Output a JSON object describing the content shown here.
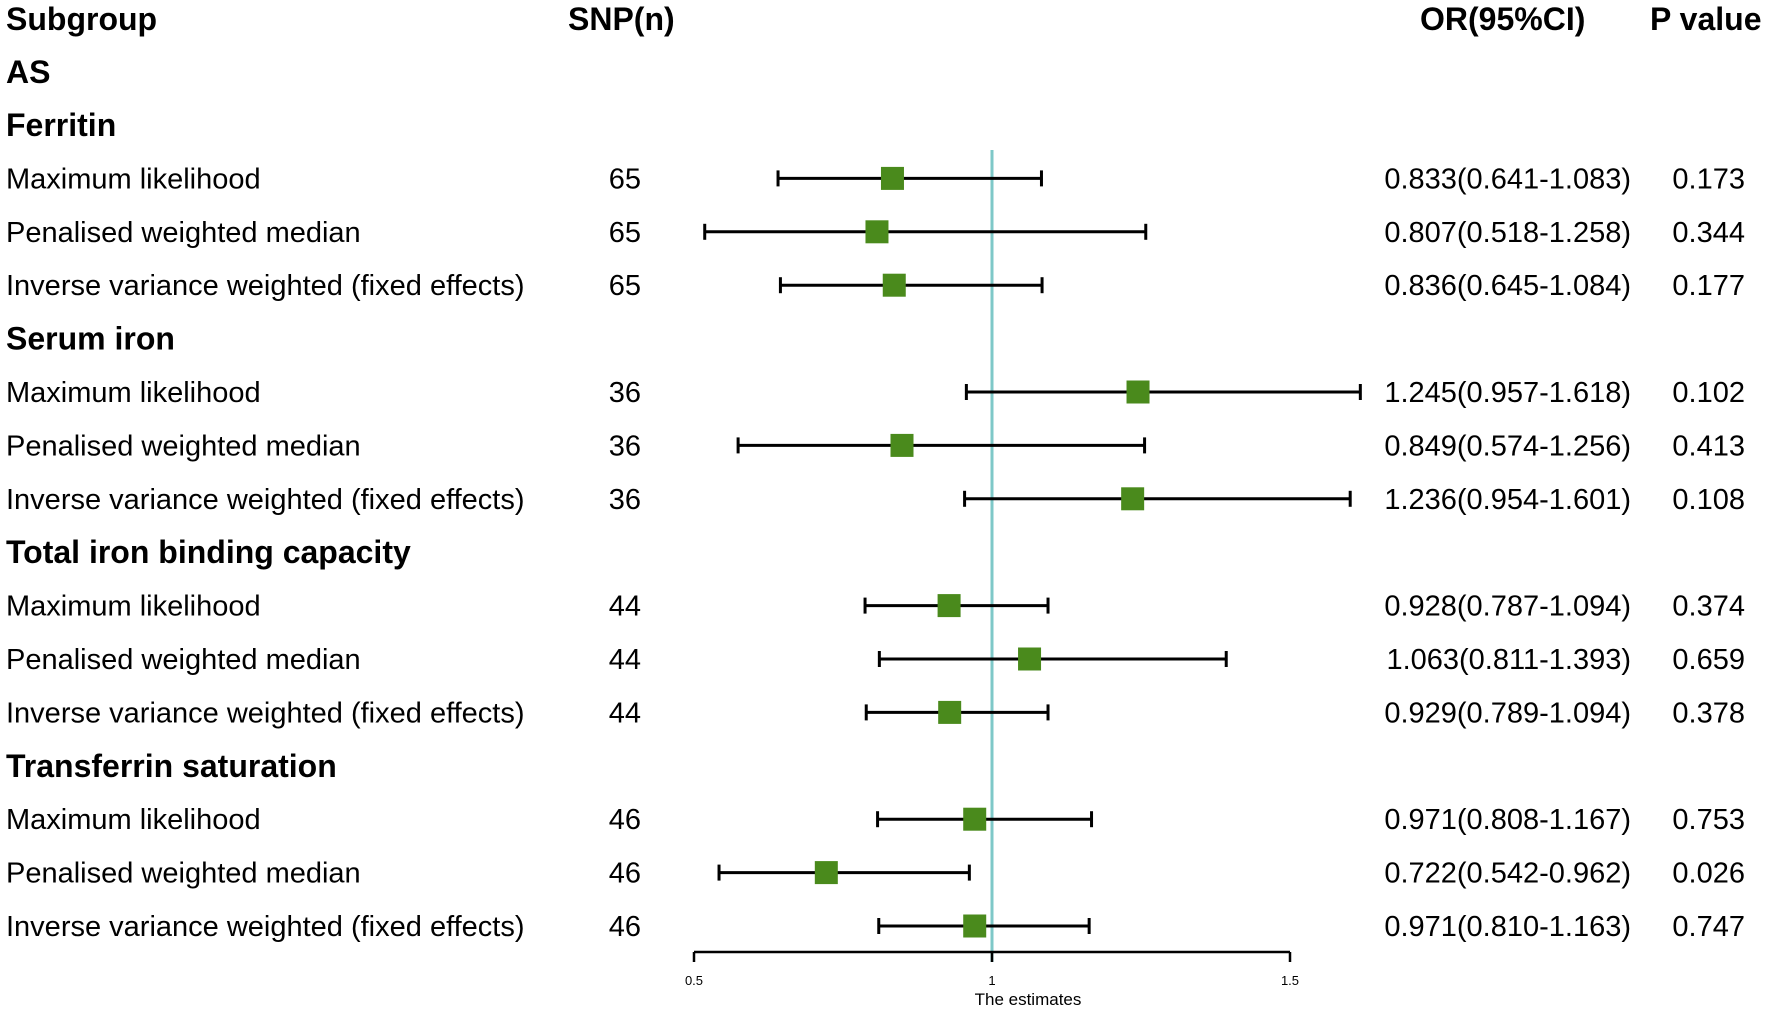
{
  "chart_data": {
    "type": "forest",
    "headers": {
      "subgroup": "Subgroup",
      "snp": "SNP(n)",
      "or": "OR(95%CI)",
      "p": "P value"
    },
    "outcome": "AS",
    "xlabel": "The estimates",
    "xlim": [
      0.5,
      1.5
    ],
    "xticks": [
      0.5,
      1,
      1.5
    ],
    "xtick_labels": [
      "0.5",
      "1",
      "1.5"
    ],
    "reference_line": 1,
    "colors": {
      "marker": "#4a8a1c",
      "reference": "#7ec8c8",
      "ci": "#000000"
    },
    "groups": [
      {
        "name": "Ferritin",
        "rows": [
          {
            "method": "Maximum likelihood",
            "snp": "65",
            "or": 0.833,
            "lo": 0.641,
            "hi": 1.083,
            "or_text": "0.833(0.641-1.083)",
            "p": "0.173"
          },
          {
            "method": "Penalised weighted median",
            "snp": "65",
            "or": 0.807,
            "lo": 0.518,
            "hi": 1.258,
            "or_text": "0.807(0.518-1.258)",
            "p": "0.344"
          },
          {
            "method": "Inverse variance weighted (fixed effects)",
            "snp": "65",
            "or": 0.836,
            "lo": 0.645,
            "hi": 1.084,
            "or_text": "0.836(0.645-1.084)",
            "p": "0.177"
          }
        ]
      },
      {
        "name": "Serum iron",
        "rows": [
          {
            "method": "Maximum likelihood",
            "snp": "36",
            "or": 1.245,
            "lo": 0.957,
            "hi": 1.618,
            "or_text": "1.245(0.957-1.618)",
            "p": "0.102"
          },
          {
            "method": "Penalised weighted median",
            "snp": "36",
            "or": 0.849,
            "lo": 0.574,
            "hi": 1.256,
            "or_text": "0.849(0.574-1.256)",
            "p": "0.413"
          },
          {
            "method": "Inverse variance weighted (fixed effects)",
            "snp": "36",
            "or": 1.236,
            "lo": 0.954,
            "hi": 1.601,
            "or_text": "1.236(0.954-1.601)",
            "p": "0.108"
          }
        ]
      },
      {
        "name": "Total iron binding capacity",
        "rows": [
          {
            "method": "Maximum likelihood",
            "snp": "44",
            "or": 0.928,
            "lo": 0.787,
            "hi": 1.094,
            "or_text": "0.928(0.787-1.094)",
            "p": "0.374"
          },
          {
            "method": "Penalised weighted median",
            "snp": "44",
            "or": 1.063,
            "lo": 0.811,
            "hi": 1.393,
            "or_text": "1.063(0.811-1.393)",
            "p": "0.659"
          },
          {
            "method": "Inverse variance weighted (fixed effects)",
            "snp": "44",
            "or": 0.929,
            "lo": 0.789,
            "hi": 1.094,
            "or_text": "0.929(0.789-1.094)",
            "p": "0.378"
          }
        ]
      },
      {
        "name": "Transferrin saturation",
        "rows": [
          {
            "method": "Maximum likelihood",
            "snp": "46",
            "or": 0.971,
            "lo": 0.808,
            "hi": 1.167,
            "or_text": "0.971(0.808-1.167)",
            "p": "0.753"
          },
          {
            "method": "Penalised weighted median",
            "snp": "46",
            "or": 0.722,
            "lo": 0.542,
            "hi": 0.962,
            "or_text": "0.722(0.542-0.962)",
            "p": "0.026"
          },
          {
            "method": "Inverse variance weighted (fixed effects)",
            "snp": "46",
            "or": 0.971,
            "lo": 0.81,
            "hi": 1.163,
            "or_text": "0.971(0.810-1.163)",
            "p": "0.747"
          }
        ]
      }
    ]
  }
}
